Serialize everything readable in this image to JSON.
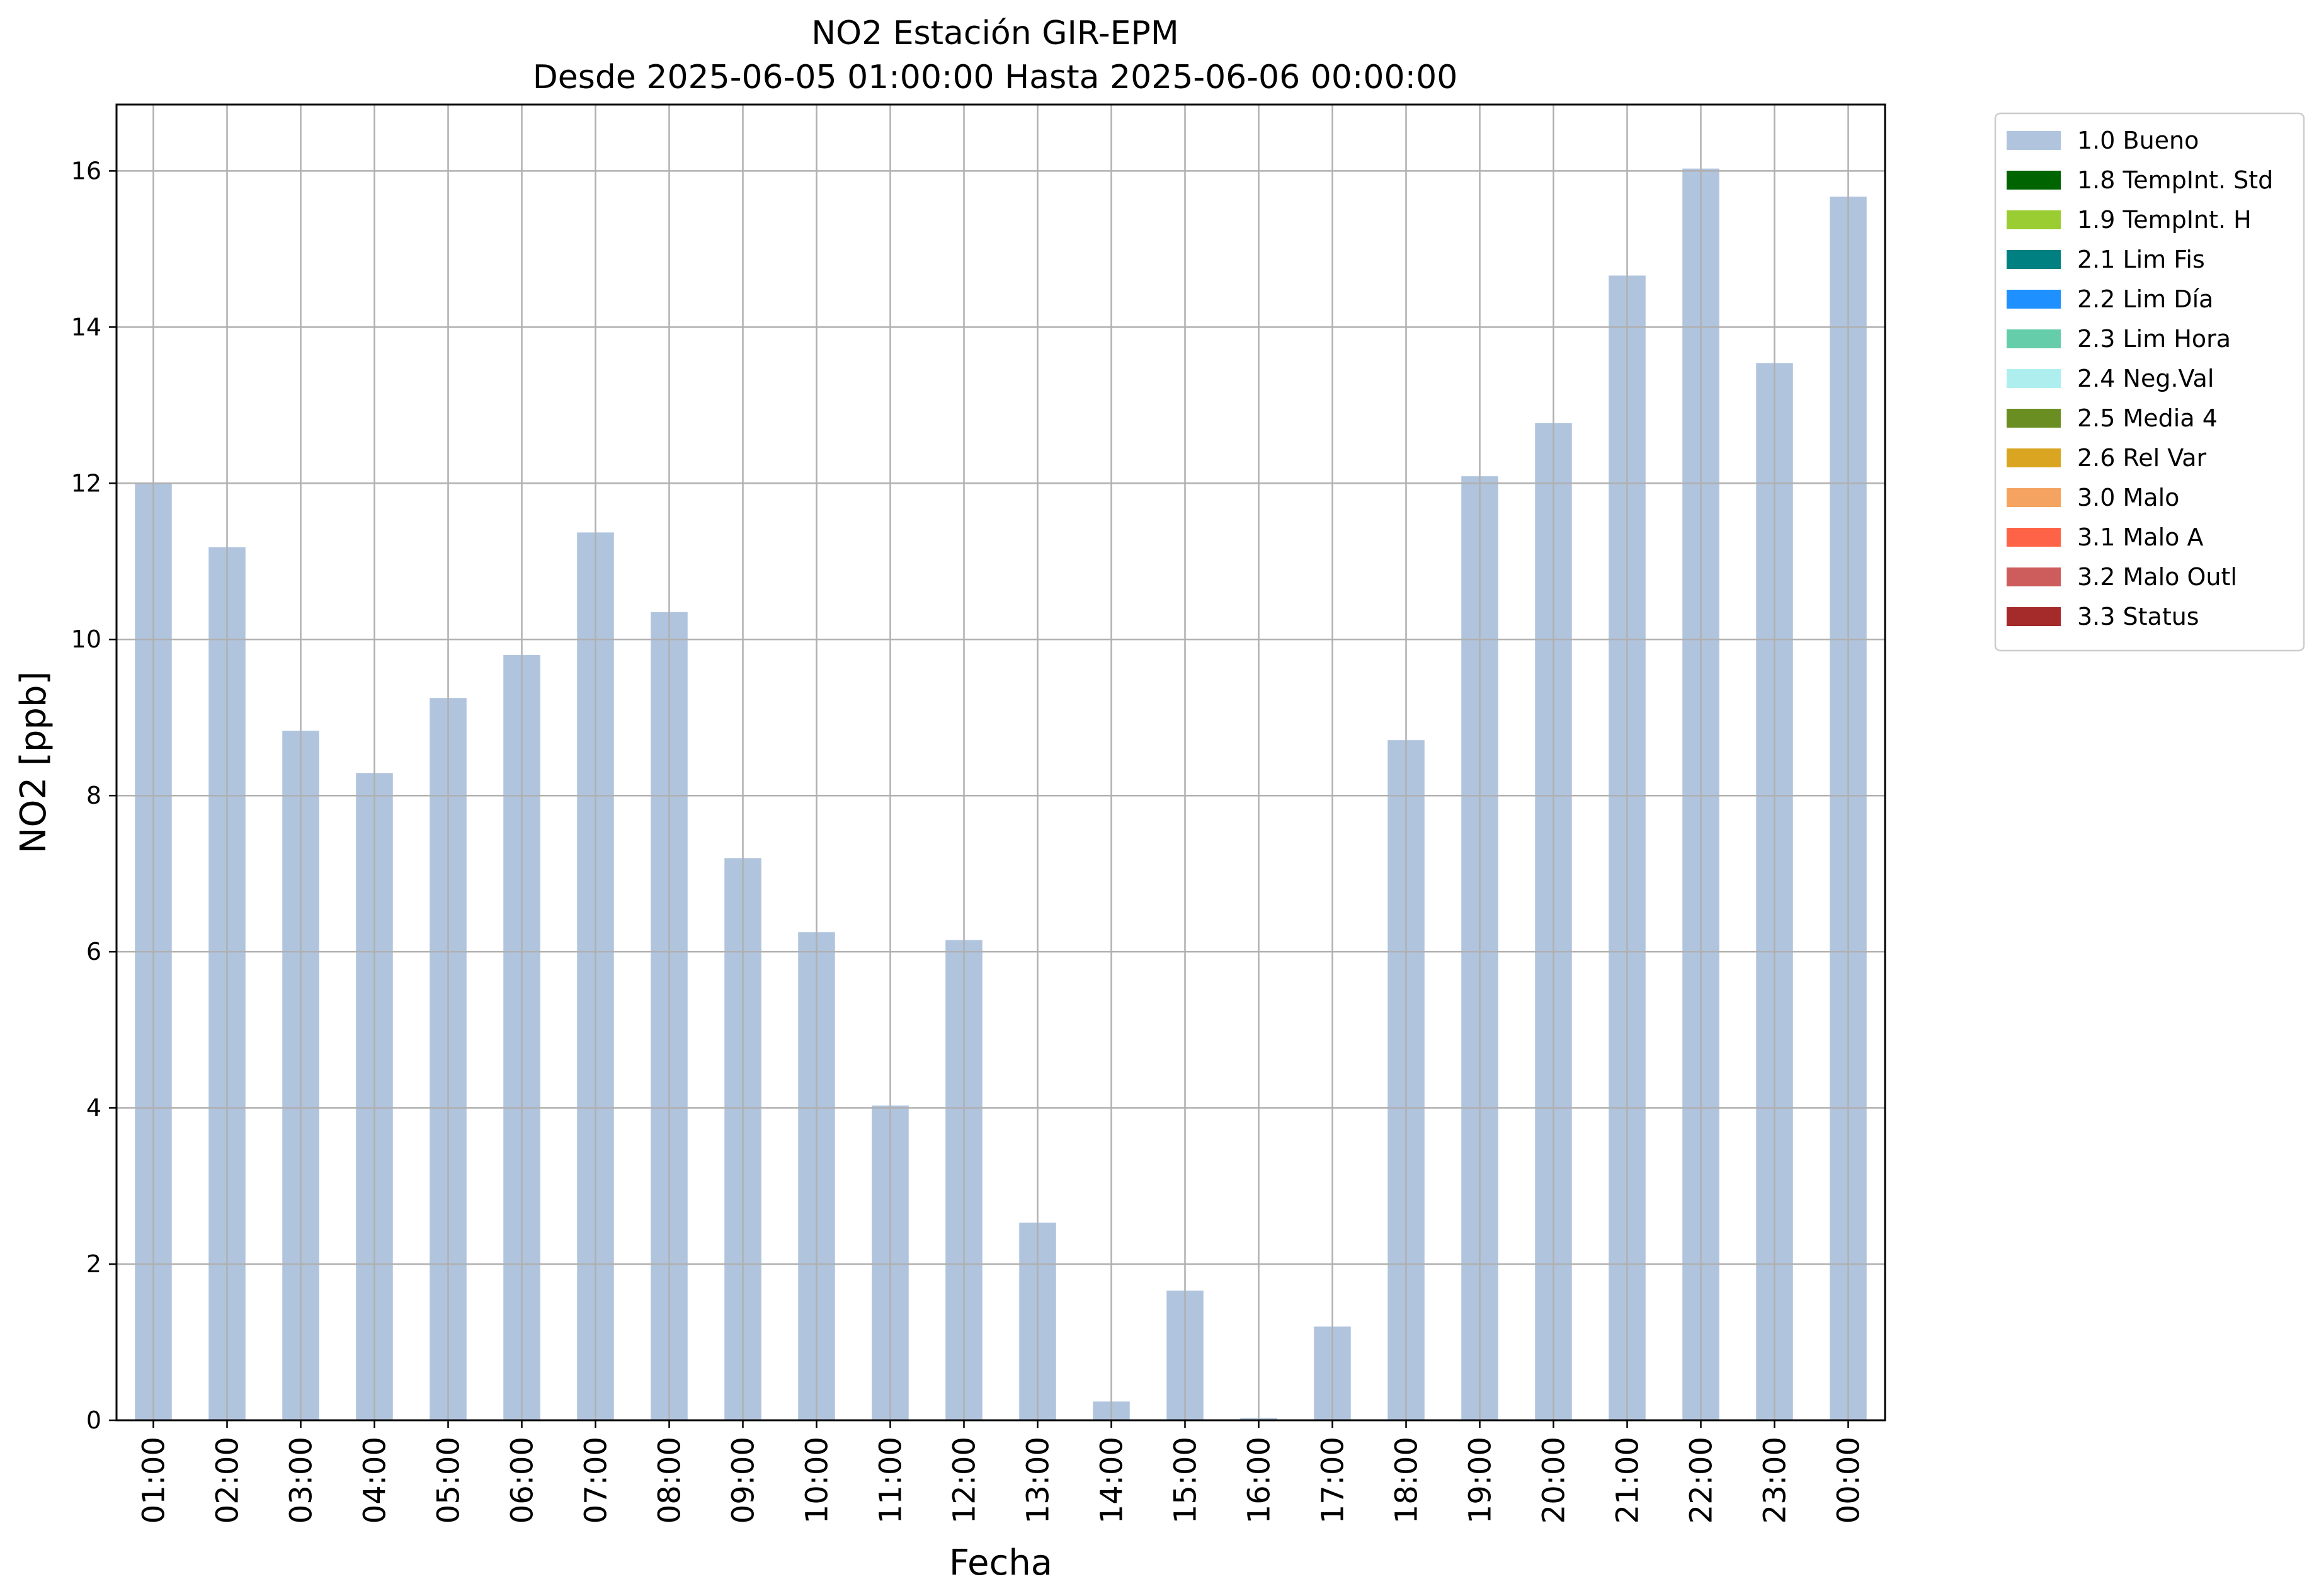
{
  "chart_data": {
    "type": "bar",
    "title": "NO2 Estación GIR-EPM",
    "subtitle": "Desde 2025-06-05 01:00:00 Hasta 2025-06-06 00:00:00",
    "xlabel": "Fecha",
    "ylabel": "NO2 [ppb]",
    "ylim": [
      0,
      16.85
    ],
    "yticks": [
      0,
      2,
      4,
      6,
      8,
      10,
      12,
      14,
      16
    ],
    "grid": true,
    "legend_position": "outside-top-right",
    "categories": [
      "01:00",
      "02:00",
      "03:00",
      "04:00",
      "05:00",
      "06:00",
      "07:00",
      "08:00",
      "09:00",
      "10:00",
      "11:00",
      "12:00",
      "13:00",
      "14:00",
      "15:00",
      "16:00",
      "17:00",
      "18:00",
      "19:00",
      "20:00",
      "21:00",
      "22:00",
      "23:00",
      "00:00"
    ],
    "series": [
      {
        "name": "1.0 Bueno",
        "color": "#b0c4de",
        "values": [
          12.0,
          11.18,
          8.83,
          8.29,
          9.25,
          9.8,
          11.37,
          10.35,
          7.2,
          6.25,
          4.03,
          6.15,
          2.53,
          0.24,
          1.66,
          0.03,
          1.2,
          8.71,
          12.09,
          12.77,
          14.66,
          16.03,
          13.54,
          15.67
        ]
      }
    ],
    "legend": [
      {
        "label": "1.0 Bueno",
        "color": "#b0c4de"
      },
      {
        "label": "1.8 TempInt. Std",
        "color": "#006400"
      },
      {
        "label": "1.9 TempInt. H",
        "color": "#9acd32"
      },
      {
        "label": "2.1 Lim Fis",
        "color": "#008080"
      },
      {
        "label": "2.2 Lim Día",
        "color": "#1e90ff"
      },
      {
        "label": "2.3 Lim Hora",
        "color": "#66cdaa"
      },
      {
        "label": "2.4 Neg.Val",
        "color": "#afeeee"
      },
      {
        "label": "2.5 Media 4",
        "color": "#6b8e23"
      },
      {
        "label": "2.6 Rel Var",
        "color": "#daa520"
      },
      {
        "label": "3.0 Malo",
        "color": "#f4a460"
      },
      {
        "label": "3.1 Malo A",
        "color": "#ff6347"
      },
      {
        "label": "3.2 Malo Outl",
        "color": "#cd5c5c"
      },
      {
        "label": "3.3 Status",
        "color": "#a52a2a"
      }
    ]
  }
}
